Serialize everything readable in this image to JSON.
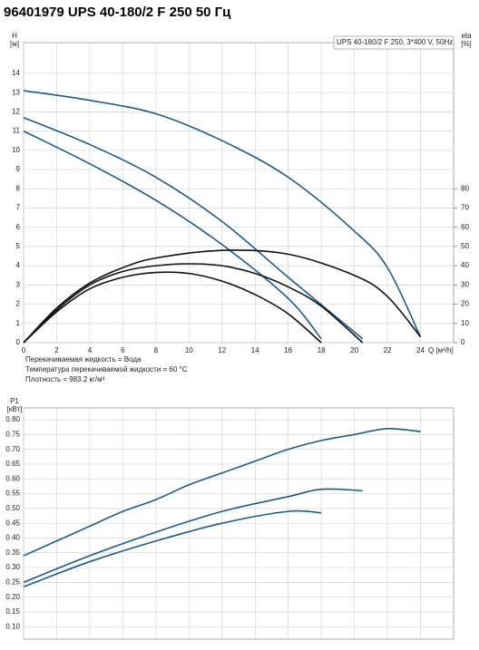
{
  "title": "96401979 UPS 40-180/2 F 250 50 Гц",
  "chart_data": [
    {
      "type": "line",
      "legend_text": "UPS 40-180/2 F 250, 3*400 V, 50Hz",
      "y_label": [
        "H",
        "[м]"
      ],
      "y2_label": [
        "eta",
        "[%]"
      ],
      "x_label": "Q [м³/h]",
      "notes": [
        "Перекачиваемая жидкость = Вода",
        "Температура перекачиваемой жидкости = 60 °C",
        "Плотность = 983.2 кг/м³"
      ],
      "xlim": [
        0,
        26
      ],
      "xticks": [
        0,
        2,
        4,
        6,
        8,
        10,
        12,
        14,
        16,
        18,
        20,
        22,
        24
      ],
      "ylim": [
        0,
        15.6
      ],
      "yticks": [
        0,
        1,
        2,
        3,
        4,
        5,
        6,
        7,
        8,
        9,
        10,
        11,
        12,
        13,
        14
      ],
      "y2lim": [
        0,
        156
      ],
      "y2ticks": [
        0,
        10,
        20,
        30,
        40,
        50,
        60,
        70,
        80
      ],
      "grid": true,
      "show_xtick_labels": true,
      "series": [
        {
          "color": "#1d5b88",
          "x": [
            0,
            4,
            8,
            12,
            16,
            20,
            22,
            24
          ],
          "values": [
            13.1,
            12.6,
            11.9,
            10.5,
            8.6,
            5.8,
            3.9,
            0.3
          ]
        },
        {
          "color": "#1d5b88",
          "x": [
            0,
            4,
            8,
            12,
            16,
            20.5
          ],
          "values": [
            11.7,
            10.3,
            8.6,
            6.3,
            3.4,
            0.2
          ]
        },
        {
          "color": "#1d5b88",
          "x": [
            0,
            4,
            8,
            12,
            16,
            18
          ],
          "values": [
            11.0,
            9.3,
            7.4,
            5.1,
            2.3,
            0.2
          ]
        },
        {
          "color": "#111111",
          "axis": "y2",
          "x": [
            0,
            2,
            4,
            6,
            8,
            12,
            16,
            20,
            22,
            24
          ],
          "values": [
            0,
            18,
            31,
            39,
            44,
            48,
            46,
            35,
            24,
            3
          ]
        },
        {
          "color": "#111111",
          "axis": "y2",
          "x": [
            0,
            2,
            4,
            6,
            8,
            10,
            12,
            14,
            16,
            18,
            20.5
          ],
          "values": [
            0,
            17,
            30,
            37,
            40,
            41,
            40,
            36,
            29,
            19,
            0
          ]
        },
        {
          "color": "#111111",
          "axis": "y2",
          "x": [
            0,
            2,
            4,
            6,
            8,
            10,
            12,
            14,
            16,
            18
          ],
          "values": [
            0,
            16,
            28,
            34,
            36.5,
            36,
            32,
            25,
            15,
            0
          ]
        }
      ]
    },
    {
      "type": "line",
      "y_label": [
        "P1",
        "[кВт]"
      ],
      "xlim": [
        0,
        26
      ],
      "xticks": [
        0,
        2,
        4,
        6,
        8,
        10,
        12,
        14,
        16,
        18,
        20,
        22,
        24
      ],
      "ylim": [
        0.058,
        0.84
      ],
      "yticks": [
        {
          "value": 0.1,
          "label": "0.10"
        },
        0.15,
        {
          "value": 0.2,
          "label": "0.20"
        },
        0.25,
        {
          "value": 0.3,
          "label": "0.30"
        },
        0.35,
        {
          "value": 0.4,
          "label": "0.40"
        },
        0.45,
        {
          "value": 0.5,
          "label": "0.50"
        },
        0.55,
        {
          "value": 0.6,
          "label": "0.60"
        },
        0.65,
        {
          "value": 0.7,
          "label": "0.70"
        },
        0.75,
        {
          "value": 0.8,
          "label": "0.80"
        }
      ],
      "grid": true,
      "show_xtick_labels": false,
      "series": [
        {
          "color": "#1d5b88",
          "x": [
            0,
            2,
            4,
            6,
            8,
            10,
            12,
            14,
            16,
            18,
            20,
            22,
            24
          ],
          "values": [
            0.34,
            0.39,
            0.44,
            0.49,
            0.53,
            0.58,
            0.62,
            0.66,
            0.7,
            0.73,
            0.75,
            0.77,
            0.76
          ]
        },
        {
          "color": "#1d5b88",
          "x": [
            0,
            4,
            8,
            12,
            16,
            18,
            20.5
          ],
          "values": [
            0.25,
            0.34,
            0.42,
            0.49,
            0.54,
            0.565,
            0.56
          ]
        },
        {
          "color": "#1d5b88",
          "x": [
            0,
            4,
            8,
            12,
            16,
            18
          ],
          "values": [
            0.235,
            0.32,
            0.39,
            0.45,
            0.49,
            0.485
          ]
        }
      ]
    }
  ]
}
